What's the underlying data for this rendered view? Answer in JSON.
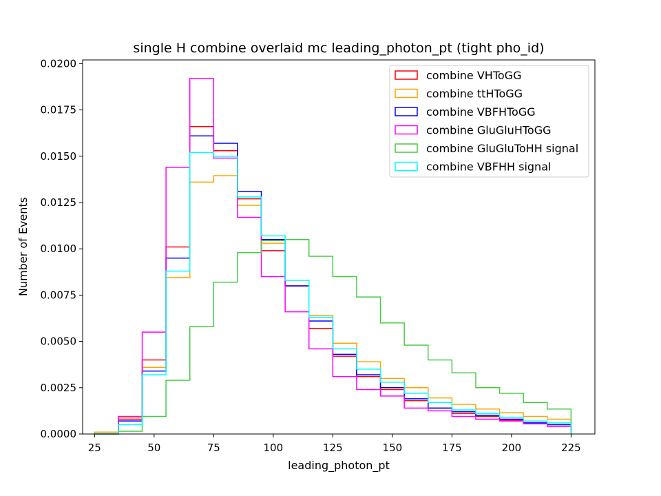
{
  "chart_data": {
    "type": "histogram-step",
    "title": "single H combine overlaid mc leading_photon_pt (tight pho_id)",
    "xlabel": "leading_photon_pt",
    "ylabel": "Number of Events",
    "xlim": [
      20,
      235
    ],
    "ylim": [
      0,
      0.0202
    ],
    "x_ticks": [
      25,
      50,
      75,
      100,
      125,
      150,
      175,
      200,
      225
    ],
    "y_ticks": [
      0.0,
      0.0025,
      0.005,
      0.0075,
      0.01,
      0.0125,
      0.015,
      0.0175,
      0.02
    ],
    "x_tick_labels": [
      "25",
      "50",
      "75",
      "100",
      "125",
      "150",
      "175",
      "200",
      "225"
    ],
    "y_tick_labels": [
      "0.0000",
      "0.0025",
      "0.0050",
      "0.0075",
      "0.0100",
      "0.0125",
      "0.0150",
      "0.0175",
      "0.0200"
    ],
    "bin_edges": [
      25,
      35,
      45,
      55,
      65,
      75,
      85,
      95,
      105,
      115,
      125,
      135,
      145,
      155,
      165,
      175,
      185,
      195,
      205,
      215,
      225
    ],
    "legend_position": "top-right",
    "grid": false,
    "series": [
      {
        "name": "combine VHToGG",
        "color": "#ff0000",
        "values": [
          0.0,
          0.0008,
          0.004,
          0.0101,
          0.0166,
          0.0153,
          0.0127,
          0.0099,
          0.008,
          0.0057,
          0.0042,
          0.0031,
          0.0024,
          0.0018,
          0.0014,
          0.0011,
          0.00095,
          0.00075,
          0.0006,
          0.0005
        ]
      },
      {
        "name": "combine ttHToGG",
        "color": "#ffa500",
        "values": [
          0.0001,
          0.0009,
          0.0036,
          0.00845,
          0.0136,
          0.01395,
          0.01235,
          0.0103,
          0.0083,
          0.0064,
          0.0049,
          0.0039,
          0.003,
          0.0025,
          0.00195,
          0.0016,
          0.00135,
          0.00115,
          0.00095,
          0.0008
        ]
      },
      {
        "name": "combine VBFHToGG",
        "color": "#0000ff",
        "values": [
          0.0,
          0.0007,
          0.0034,
          0.0095,
          0.0161,
          0.0157,
          0.0131,
          0.0105,
          0.008,
          0.0061,
          0.0043,
          0.0032,
          0.0025,
          0.0019,
          0.0014,
          0.0012,
          0.001,
          0.0008,
          0.0006,
          0.0005
        ]
      },
      {
        "name": "combine GluGluHToGG",
        "color": "#ff00ff",
        "values": [
          0.0,
          0.00095,
          0.0055,
          0.0144,
          0.0192,
          0.0149,
          0.0117,
          0.0085,
          0.0066,
          0.0046,
          0.0031,
          0.0024,
          0.00205,
          0.0014,
          0.00125,
          0.00095,
          0.0008,
          0.0007,
          0.00055,
          0.0004
        ]
      },
      {
        "name": "combine GluGluToHH signal",
        "color": "#44cc44",
        "values": [
          0.0,
          0.00015,
          0.00095,
          0.0029,
          0.0058,
          0.0082,
          0.0098,
          0.01045,
          0.0105,
          0.0096,
          0.0085,
          0.0074,
          0.006,
          0.0048,
          0.004,
          0.0033,
          0.0025,
          0.0022,
          0.0017,
          0.00135
        ]
      },
      {
        "name": "combine VBFHH signal",
        "color": "#00ffff",
        "values": [
          0.0,
          0.0005,
          0.0032,
          0.0088,
          0.0152,
          0.015,
          0.0128,
          0.0107,
          0.0083,
          0.0063,
          0.0046,
          0.0035,
          0.0028,
          0.0022,
          0.0017,
          0.0013,
          0.0011,
          0.0009,
          0.0007,
          0.0006
        ]
      }
    ]
  }
}
